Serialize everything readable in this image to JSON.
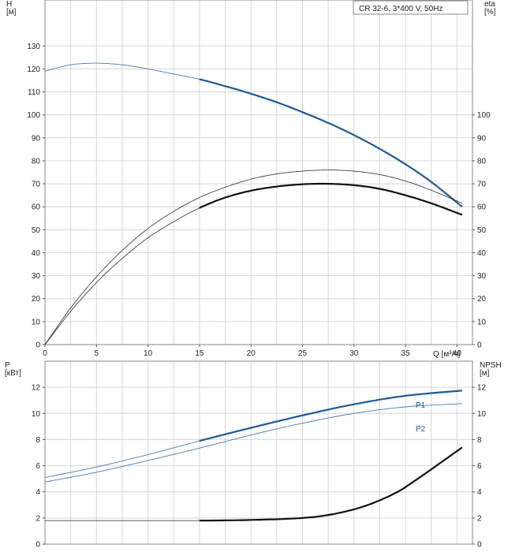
{
  "chart_data": [
    {
      "type": "line",
      "title": "CR 32-6, 3*400 V, 50Hz",
      "xlabel": "Q [м³/ч]",
      "ylabel": "H\n[м]",
      "y2label": "eta\n[%]",
      "xlim": [
        0,
        41.5
      ],
      "ylim": [
        0,
        150
      ],
      "y2lim": [
        0,
        150
      ],
      "xticks": [
        0,
        5,
        10,
        15,
        20,
        25,
        30,
        35,
        40
      ],
      "yticks": [
        0,
        10,
        20,
        30,
        40,
        50,
        60,
        70,
        80,
        90,
        100,
        110,
        120,
        130
      ],
      "y2ticks": [
        0,
        10,
        20,
        30,
        40,
        50,
        60,
        70,
        80,
        90,
        100
      ],
      "grid": true,
      "series": [
        {
          "name": "",
          "kind": "H",
          "axis": "left",
          "color": "#1f5a96",
          "x": [
            0,
            2.5,
            5,
            7.5,
            10,
            12.5,
            15,
            17.5,
            20,
            22.5,
            25,
            27.5,
            30,
            32.5,
            35,
            37.5,
            40.5
          ],
          "y": [
            119,
            121.8,
            122.5,
            121.8,
            120,
            117.8,
            115.5,
            112.5,
            109.2,
            105.5,
            101.2,
            96.5,
            91.2,
            85.2,
            78.5,
            70.8,
            60
          ],
          "thick_from": 15
        },
        {
          "name": "",
          "kind": "eta",
          "axis": "right",
          "color": "#111111",
          "x": [
            0,
            2.5,
            5,
            7.5,
            10,
            12.5,
            15,
            17.5,
            20,
            22.5,
            25,
            27.5,
            30,
            32.5,
            35,
            37.5,
            40.5
          ],
          "y": [
            0,
            16,
            29.5,
            41,
            50.5,
            58,
            64,
            68.5,
            72,
            74.3,
            75.5,
            76,
            75.5,
            74,
            71.2,
            67.2,
            61.5
          ],
          "thick_from": 99
        },
        {
          "name": "",
          "kind": "eta",
          "axis": "right",
          "color": "#111111",
          "x": [
            0,
            2.5,
            5,
            7.5,
            10,
            12.5,
            15,
            17.5,
            20,
            22.5,
            25,
            27.5,
            30,
            32.5,
            35,
            37.5,
            40.5
          ],
          "y": [
            0,
            14.5,
            27,
            37.5,
            46.5,
            53.5,
            59.5,
            64,
            67,
            68.8,
            69.8,
            70,
            69.4,
            67.8,
            65,
            61.5,
            56.5
          ],
          "thick_from": 15
        }
      ]
    },
    {
      "type": "line",
      "xlabel": "",
      "ylabel": "P\n[кВт]",
      "y2label": "NPSH\n[м]",
      "xlim": [
        0,
        41.5
      ],
      "ylim": [
        0,
        14
      ],
      "y2lim": [
        0,
        14
      ],
      "yticks": [
        0,
        2,
        4,
        6,
        8,
        10,
        12
      ],
      "y2ticks": [
        0,
        2,
        4,
        6,
        8,
        10,
        12
      ],
      "grid": true,
      "series": [
        {
          "name": "P1",
          "axis": "left",
          "color": "#1f5a96",
          "x": [
            0,
            5,
            10,
            15,
            20,
            25,
            30,
            35,
            40.5
          ],
          "y": [
            5.1,
            5.9,
            6.85,
            7.9,
            8.9,
            9.85,
            10.7,
            11.35,
            11.75
          ],
          "thick_from": 15
        },
        {
          "name": "P2",
          "axis": "left",
          "color": "#1f5a96",
          "x": [
            0,
            5,
            10,
            15,
            20,
            25,
            30,
            35,
            40.5
          ],
          "y": [
            4.75,
            5.5,
            6.4,
            7.35,
            8.35,
            9.25,
            10,
            10.5,
            10.75
          ],
          "thick_from": 99
        },
        {
          "name": "",
          "kind": "NPSH",
          "axis": "right",
          "color": "#111111",
          "x": [
            0,
            5,
            10,
            15,
            20,
            25,
            28,
            31,
            34,
            36,
            38,
            40.5
          ],
          "y": [
            1.8,
            1.8,
            1.8,
            1.8,
            1.85,
            2.0,
            2.3,
            2.9,
            3.9,
            4.9,
            6.0,
            7.4
          ],
          "thick_from": 15
        }
      ]
    }
  ]
}
